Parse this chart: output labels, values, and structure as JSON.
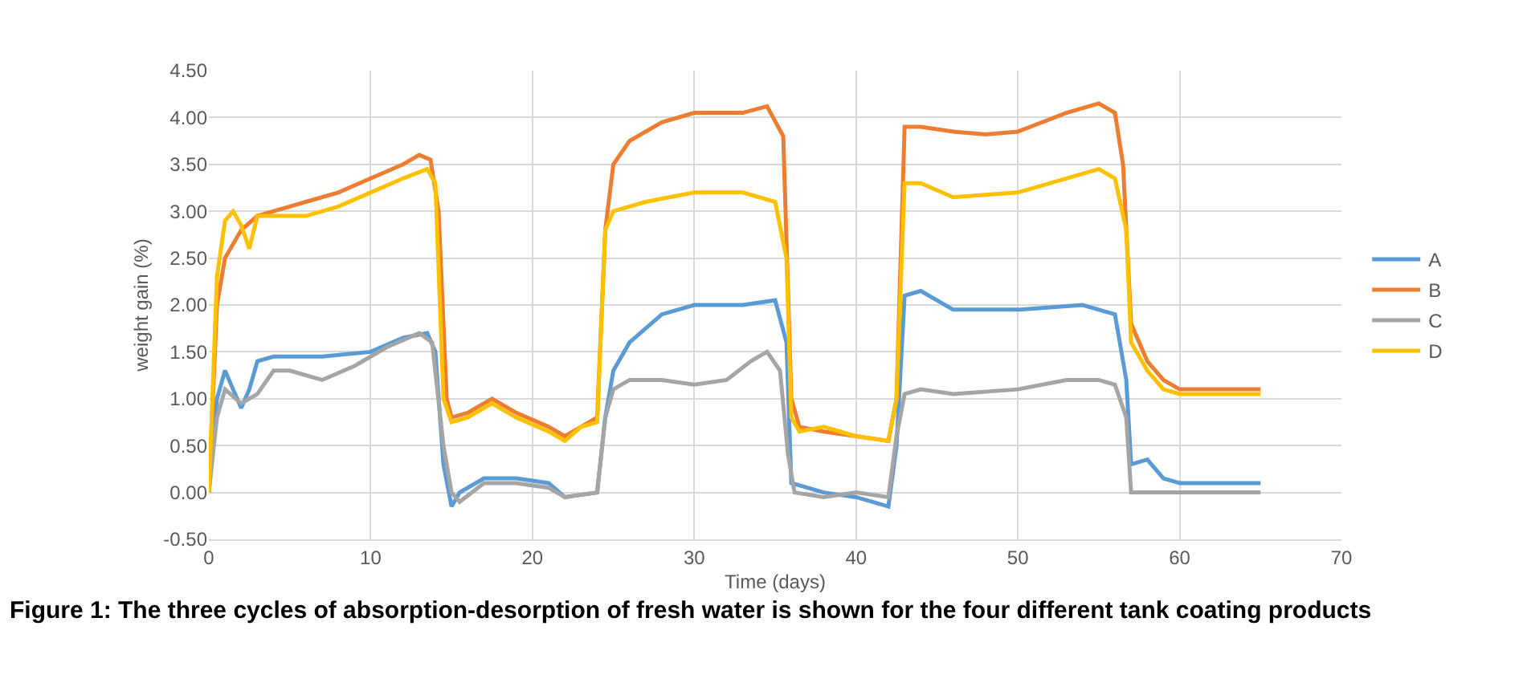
{
  "chart_data": {
    "type": "line",
    "xlabel": "Time (days)",
    "ylabel": "weight gain (%)",
    "xlim": [
      0,
      70
    ],
    "xticks": [
      0,
      10,
      20,
      30,
      40,
      50,
      60,
      70
    ],
    "ylim": [
      -0.5,
      4.5
    ],
    "yticks": [
      {
        "value": -0.5,
        "label": "-0.50"
      },
      {
        "value": 0,
        "label": "0.00"
      },
      {
        "value": 0.5,
        "label": "0.50"
      },
      {
        "value": 1,
        "label": "1.00"
      },
      {
        "value": 1.5,
        "label": "1.50"
      },
      {
        "value": 2,
        "label": "2.00"
      },
      {
        "value": 2.5,
        "label": "2.50"
      },
      {
        "value": 3,
        "label": "3.00"
      },
      {
        "value": 3.5,
        "label": "3.50"
      },
      {
        "value": 4,
        "label": "4.00"
      },
      {
        "value": 4.5,
        "label": "4.50"
      }
    ],
    "grid": true,
    "legend": "right",
    "marker": "none",
    "line_style": "solid",
    "annotations": [
      "Figure 1: The three cycles of absorption-desorption of fresh water is shown for the four different tank coating products"
    ],
    "series": [
      {
        "name": "A",
        "color": "#5b9bd5",
        "x": [
          0,
          0.5,
          1,
          1.5,
          2,
          2.5,
          3,
          4,
          7,
          10,
          12,
          13.5,
          14,
          14.5,
          15,
          15.5,
          17,
          19,
          21,
          22,
          24,
          24.5,
          25,
          26,
          28,
          30,
          33,
          35,
          35.7,
          36,
          38,
          40,
          42,
          42.5,
          43,
          44,
          46,
          50,
          54,
          56,
          56.7,
          57,
          58,
          59,
          60,
          65
        ],
        "values": [
          0,
          1.0,
          1.3,
          1.1,
          0.9,
          1.1,
          1.4,
          1.45,
          1.45,
          1.5,
          1.65,
          1.7,
          1.5,
          0.3,
          -0.15,
          0,
          0.15,
          0.15,
          0.1,
          -0.05,
          0,
          0.8,
          1.3,
          1.6,
          1.9,
          2.0,
          2.0,
          2.05,
          1.6,
          0.1,
          0,
          -0.05,
          -0.15,
          0.5,
          2.1,
          2.15,
          1.95,
          1.95,
          2.0,
          1.9,
          1.2,
          0.3,
          0.35,
          0.15,
          0.1,
          0.1
        ]
      },
      {
        "name": "B",
        "color": "#ed7d31",
        "x": [
          0,
          0.5,
          1,
          2,
          3,
          4,
          6,
          8,
          10,
          12,
          13,
          13.7,
          14.2,
          14.7,
          15,
          16,
          17.5,
          19,
          21,
          22,
          23,
          24,
          24.5,
          25,
          26,
          28,
          30,
          32,
          33,
          34.5,
          35.5,
          36,
          36.5,
          38,
          40,
          42,
          42.5,
          43,
          44,
          46,
          48,
          50,
          53,
          55,
          56,
          56.5,
          57,
          58,
          59,
          60,
          65
        ],
        "values": [
          0,
          2.0,
          2.5,
          2.8,
          2.95,
          3.0,
          3.1,
          3.2,
          3.35,
          3.5,
          3.6,
          3.55,
          3.0,
          1.0,
          0.8,
          0.85,
          1.0,
          0.85,
          0.7,
          0.6,
          0.7,
          0.8,
          2.8,
          3.5,
          3.75,
          3.95,
          4.05,
          4.05,
          4.05,
          4.12,
          3.8,
          1.0,
          0.7,
          0.65,
          0.6,
          0.55,
          1.0,
          3.9,
          3.9,
          3.85,
          3.82,
          3.85,
          4.05,
          4.15,
          4.05,
          3.5,
          1.8,
          1.4,
          1.2,
          1.1,
          1.1
        ]
      },
      {
        "name": "C",
        "color": "#a5a5a5",
        "x": [
          0,
          0.5,
          1,
          2,
          3,
          4,
          5,
          7,
          9,
          11,
          13,
          13.8,
          14.5,
          15,
          15.5,
          17,
          19,
          21,
          22,
          24,
          24.5,
          25,
          26,
          28,
          30,
          32,
          33.5,
          34.5,
          35.3,
          35.8,
          36.2,
          38,
          40,
          42,
          42.5,
          43,
          44,
          46,
          50,
          53,
          55,
          56,
          56.7,
          57,
          59,
          65
        ],
        "values": [
          0,
          0.8,
          1.1,
          0.95,
          1.05,
          1.3,
          1.3,
          1.2,
          1.35,
          1.55,
          1.7,
          1.6,
          0.5,
          0,
          -0.1,
          0.1,
          0.1,
          0.05,
          -0.05,
          0,
          0.8,
          1.1,
          1.2,
          1.2,
          1.15,
          1.2,
          1.4,
          1.5,
          1.3,
          0.4,
          0,
          -0.05,
          0,
          -0.05,
          0.6,
          1.05,
          1.1,
          1.05,
          1.1,
          1.2,
          1.2,
          1.15,
          0.8,
          0,
          0,
          0
        ]
      },
      {
        "name": "D",
        "color": "#ffc000",
        "x": [
          0,
          0.5,
          1,
          1.5,
          2,
          2.5,
          3,
          4,
          6,
          8,
          10,
          12,
          13.5,
          14,
          14.5,
          15,
          16,
          17.5,
          19,
          21,
          22,
          23,
          24,
          24.5,
          25,
          27,
          30,
          33,
          35,
          35.7,
          36,
          36.5,
          38,
          40,
          42,
          42.5,
          43,
          44,
          46,
          50,
          53,
          55,
          56,
          56.7,
          57,
          58,
          59,
          60,
          65
        ],
        "values": [
          0,
          2.3,
          2.9,
          3.0,
          2.85,
          2.6,
          2.95,
          2.95,
          2.95,
          3.05,
          3.2,
          3.35,
          3.45,
          3.3,
          1.0,
          0.75,
          0.8,
          0.95,
          0.8,
          0.65,
          0.55,
          0.7,
          0.75,
          2.8,
          3.0,
          3.1,
          3.2,
          3.2,
          3.1,
          2.5,
          0.8,
          0.65,
          0.7,
          0.6,
          0.55,
          1.0,
          3.3,
          3.3,
          3.15,
          3.2,
          3.35,
          3.45,
          3.35,
          2.8,
          1.6,
          1.3,
          1.1,
          1.05,
          1.05
        ]
      }
    ]
  }
}
